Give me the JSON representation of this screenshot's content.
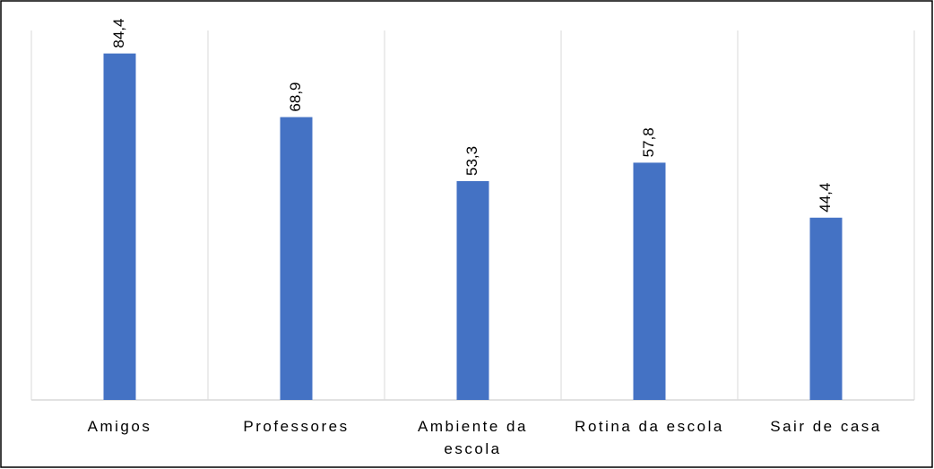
{
  "chart_data": {
    "type": "bar",
    "categories": [
      "Amigos",
      "Professores",
      "Ambiente da escola",
      "Rotina da escola",
      "Sair de casa"
    ],
    "values": [
      84.4,
      68.9,
      53.3,
      57.8,
      44.4
    ],
    "value_labels": [
      "84,4",
      "68,9",
      "53,3",
      "57,8",
      "44,4"
    ],
    "color": "#4472c4",
    "ylim": [
      0,
      90
    ]
  }
}
